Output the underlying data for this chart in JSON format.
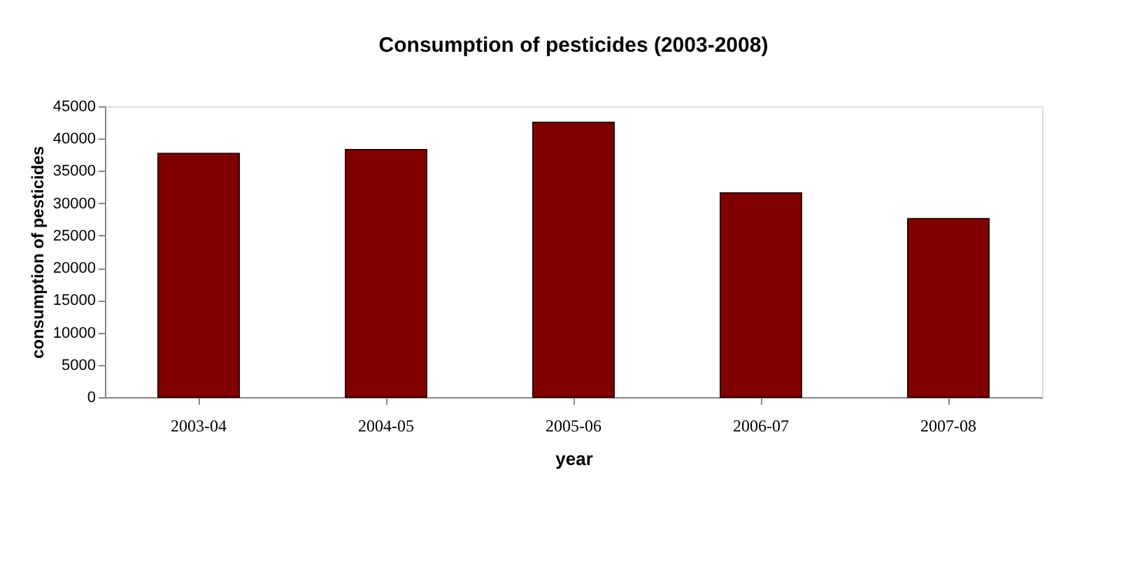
{
  "chart_data": {
    "type": "bar",
    "title": "Consumption of pesticides (2003-2008)",
    "xlabel": "year",
    "ylabel": "consumption of pesticides",
    "categories": [
      "2003-04",
      "2004-05",
      "2005-06",
      "2006-07",
      "2007-08"
    ],
    "values": [
      37700,
      38300,
      42500,
      31600,
      27600
    ],
    "color": "#800000",
    "ylim": [
      0,
      45000
    ],
    "yticks": [
      0,
      5000,
      10000,
      15000,
      20000,
      25000,
      30000,
      35000,
      40000,
      45000
    ],
    "grid": false
  }
}
